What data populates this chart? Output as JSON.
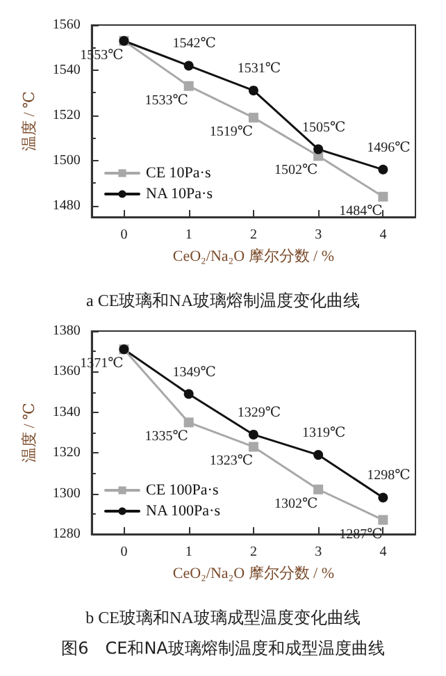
{
  "chart_data": [
    {
      "type": "line",
      "xlabel": "CeO₂/Na₂O 摩尔分数 / %",
      "ylabel": "温度 / ℃",
      "x": [
        0,
        1,
        2,
        3,
        4
      ],
      "xlim": [
        -0.5,
        4.5
      ],
      "xticks": [
        0,
        1,
        2,
        3,
        4
      ],
      "ylim": [
        1475,
        1560
      ],
      "yticks": [
        1480,
        1500,
        1520,
        1540,
        1560
      ],
      "grid": false,
      "legend": "bottom left",
      "annotations": [
        "a CE玻璃和NA玻璃熔制温度变化曲线"
      ],
      "series": [
        {
          "name": "CE 10Pa·s",
          "color": "#a8a8a8",
          "marker": "square",
          "values": [
            1553,
            1533,
            1519,
            1502,
            1484
          ],
          "value_labels": [
            "1553℃",
            "1533℃",
            "1519℃",
            "1502℃",
            "1484℃"
          ]
        },
        {
          "name": "NA 10Pa·s",
          "color": "#111111",
          "marker": "circle",
          "values": [
            1553,
            1542,
            1531,
            1505,
            1496
          ],
          "value_labels": [
            null,
            "1542℃",
            "1531℃",
            "1505℃",
            "1496℃"
          ]
        }
      ]
    },
    {
      "type": "line",
      "xlabel": "CeO₂/Na₂O 摩尔分数 / %",
      "ylabel": "温度 / ℃",
      "x": [
        0,
        1,
        2,
        3,
        4
      ],
      "xlim": [
        -0.5,
        4.5
      ],
      "xticks": [
        0,
        1,
        2,
        3,
        4
      ],
      "ylim": [
        1280,
        1380
      ],
      "yticks": [
        1280,
        1300,
        1320,
        1340,
        1360,
        1380
      ],
      "grid": false,
      "legend": "bottom left",
      "annotations": [
        "b CE玻璃和NA玻璃成型温度变化曲线",
        "图6　CE和NA玻璃熔制温度和成型温度曲线"
      ],
      "series": [
        {
          "name": "CE 100Pa·s",
          "color": "#a8a8a8",
          "marker": "square",
          "values": [
            1371,
            1335,
            1323,
            1302,
            1287
          ],
          "value_labels": [
            "1371℃",
            "1335℃",
            "1323℃",
            "1302℃",
            "1287℃"
          ]
        },
        {
          "name": "NA 100Pa·s",
          "color": "#111111",
          "marker": "circle",
          "values": [
            1371,
            1349,
            1329,
            1319,
            1298
          ],
          "value_labels": [
            null,
            "1349℃",
            "1329℃",
            "1319℃",
            "1298℃"
          ]
        }
      ]
    }
  ]
}
